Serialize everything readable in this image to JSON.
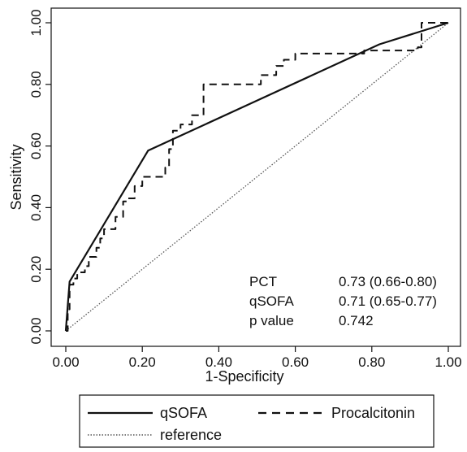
{
  "chart_data": {
    "type": "line",
    "title": "",
    "xlabel": "1-Specificity",
    "ylabel": "Sensitivity",
    "xlim": [
      0,
      1
    ],
    "ylim": [
      0,
      1
    ],
    "x_ticks": [
      0,
      0.2,
      0.4,
      0.6,
      0.8,
      1.0
    ],
    "y_ticks": [
      0,
      0.2,
      0.4,
      0.6,
      0.8,
      1.0
    ],
    "x_tick_labels": [
      "0.00",
      "0.20",
      "0.40",
      "0.60",
      "0.80",
      "1.00"
    ],
    "y_tick_labels": [
      "0.00",
      "0.20",
      "0.40",
      "0.60",
      "0.80",
      "1.00"
    ],
    "grid": false,
    "legend_position": "bottom",
    "series": [
      {
        "name": "qSOFA",
        "style": "solid",
        "color": "#111111",
        "x": [
          0,
          0.01,
          0.215,
          0.82,
          1.0
        ],
        "y": [
          0,
          0.16,
          0.585,
          0.93,
          1.0
        ]
      },
      {
        "name": "Procalcitonin",
        "style": "dashed",
        "color": "#111111",
        "x": [
          0,
          0.005,
          0.005,
          0.01,
          0.01,
          0.02,
          0.02,
          0.03,
          0.03,
          0.05,
          0.05,
          0.06,
          0.06,
          0.08,
          0.08,
          0.09,
          0.09,
          0.1,
          0.1,
          0.13,
          0.13,
          0.15,
          0.15,
          0.16,
          0.16,
          0.18,
          0.18,
          0.2,
          0.2,
          0.26,
          0.26,
          0.27,
          0.27,
          0.28,
          0.28,
          0.3,
          0.3,
          0.33,
          0.33,
          0.36,
          0.36,
          0.51,
          0.51,
          0.55,
          0.55,
          0.57,
          0.57,
          0.6,
          0.6,
          0.78,
          0.78,
          0.92,
          0.92,
          0.93,
          0.93,
          1.0
        ],
        "y": [
          0,
          0,
          0.07,
          0.07,
          0.15,
          0.15,
          0.17,
          0.17,
          0.19,
          0.19,
          0.21,
          0.21,
          0.24,
          0.24,
          0.27,
          0.27,
          0.3,
          0.3,
          0.33,
          0.33,
          0.37,
          0.37,
          0.42,
          0.42,
          0.43,
          0.43,
          0.47,
          0.47,
          0.5,
          0.5,
          0.53,
          0.53,
          0.59,
          0.59,
          0.65,
          0.65,
          0.67,
          0.67,
          0.7,
          0.7,
          0.8,
          0.8,
          0.83,
          0.83,
          0.86,
          0.86,
          0.88,
          0.88,
          0.9,
          0.9,
          0.91,
          0.91,
          0.92,
          0.92,
          1.0,
          1.0
        ]
      },
      {
        "name": "reference",
        "style": "dotted",
        "color": "#555555",
        "x": [
          0,
          1
        ],
        "y": [
          0,
          1
        ]
      }
    ],
    "annotations": [
      {
        "label": "PCT",
        "value": "0.73 (0.66-0.80)"
      },
      {
        "label": "qSOFA",
        "value": "0.71 (0.65-0.77)"
      },
      {
        "label": "p value",
        "value": "0.742"
      }
    ]
  }
}
